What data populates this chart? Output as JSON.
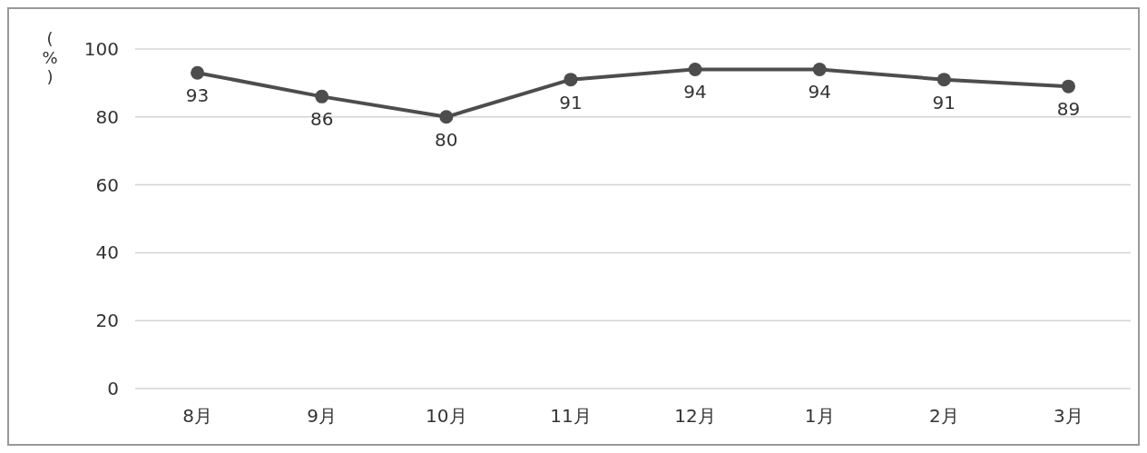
{
  "chart_data": {
    "type": "line",
    "ylabel": "(%)",
    "categories": [
      "8月",
      "9月",
      "10月",
      "11月",
      "12月",
      "1月",
      "2月",
      "3月"
    ],
    "series": [
      {
        "color": "#4d4d4d",
        "values": [
          93,
          86,
          80,
          91,
          94,
          94,
          91,
          89
        ]
      }
    ],
    "ylim": [
      0,
      100
    ],
    "yticks": [
      0,
      20,
      40,
      60,
      80,
      100
    ],
    "grid": "y",
    "marker": "circle",
    "line_style": "solid",
    "data_labels": true
  }
}
